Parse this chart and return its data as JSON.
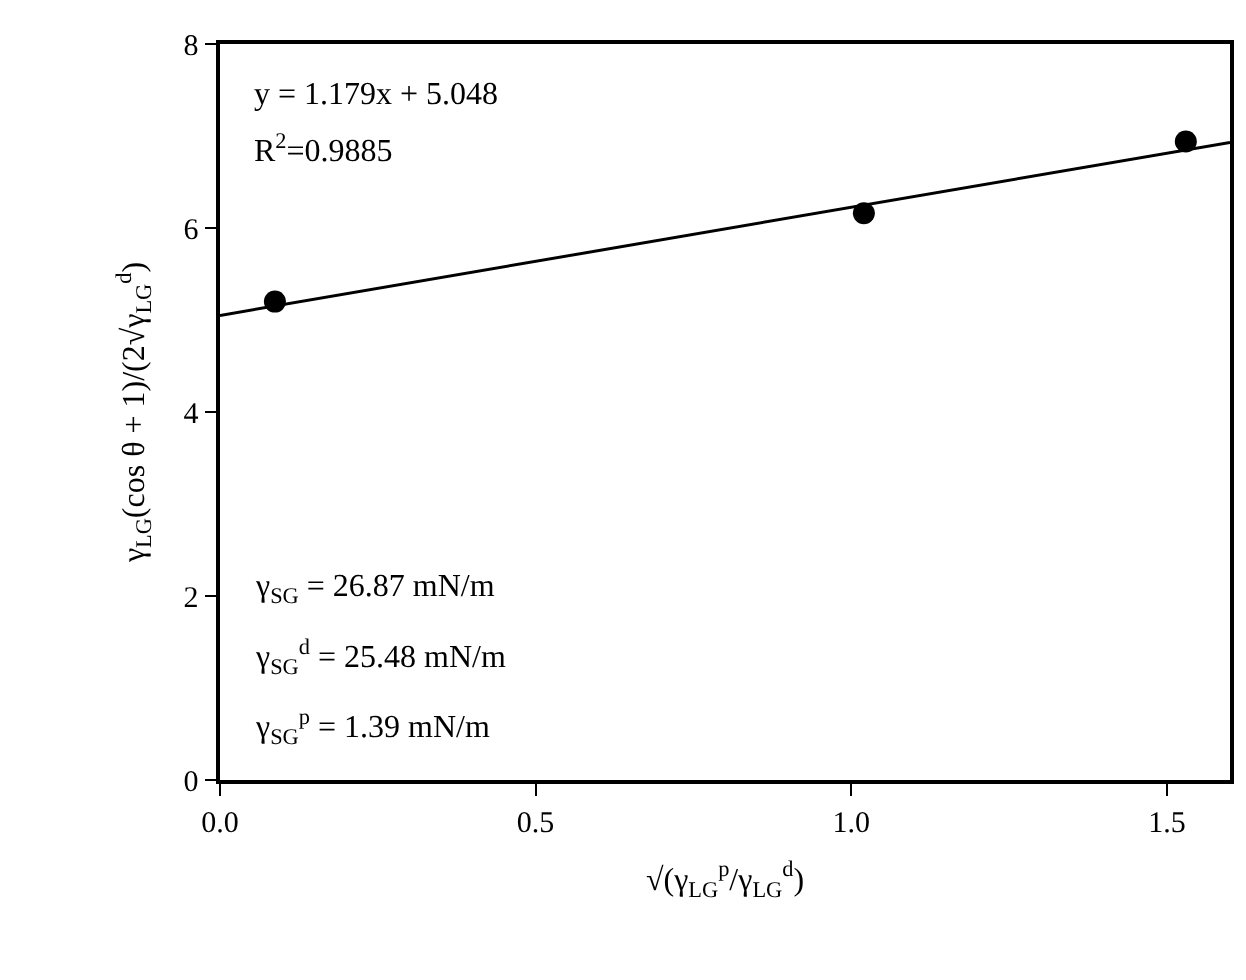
{
  "chart_data": {
    "type": "scatter",
    "xlabel": "√(γ$_{LG}$$^{p}$/γ$_{LG}$$^{d}$)",
    "ylabel": "γ$_{LG}$(cos θ + 1)/(2√γ$_{LG}$$^{d}$)",
    "x": [
      0.087,
      1.02,
      1.53
    ],
    "series": [
      {
        "color": "#000000",
        "values": [
          5.2,
          6.16,
          6.94
        ],
        "marker": "circle"
      },
      {
        "type": "line",
        "color": "#000000",
        "x": [
          0,
          1.6
        ],
        "values": [
          5.05,
          6.93
        ],
        "marker": "none",
        "line_style": "solid"
      }
    ],
    "xlim": [
      0,
      1.6
    ],
    "xticks": [
      {
        "value": 0,
        "label": "0.0"
      },
      0.5,
      {
        "value": 1,
        "label": "1.0"
      },
      1.5
    ],
    "ylim": [
      0,
      8
    ],
    "yticks": [
      0,
      2,
      4,
      6,
      8
    ],
    "annotations": [
      "y = 1.179x + 5.048",
      "R$^{2}$=0.9885",
      "γ$_{SG}$ = 26.87 mN/m",
      "γ$_{SG}$$^{d}$ = 25.48 mN/m",
      "γ$_{SG}$$^{p}$ = 1.39 mN/m"
    ]
  }
}
